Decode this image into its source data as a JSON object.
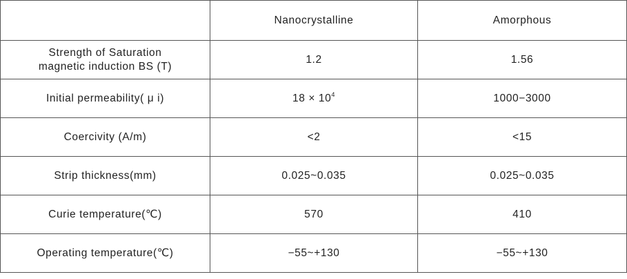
{
  "table": {
    "columns": [
      "Nanocrystalline",
      "Amorphous"
    ],
    "rows": [
      {
        "label": [
          "Strength of Saturation",
          "magnetic induction BS (T)"
        ],
        "values": [
          "1.2",
          "1.56"
        ]
      },
      {
        "label": [
          "Initial permeability( μ i)"
        ],
        "values": [
          {
            "base": "18 × 10",
            "exponent": "4"
          },
          "1000−3000"
        ]
      },
      {
        "label": [
          "Coercivity (A/m)"
        ],
        "values": [
          "<2",
          "<15"
        ]
      },
      {
        "label": [
          "Strip thickness(mm)"
        ],
        "values": [
          "0.025~0.035",
          "0.025~0.035"
        ]
      },
      {
        "label": [
          "Curie temperature(℃)"
        ],
        "values": [
          "570",
          "410"
        ]
      },
      {
        "label": [
          "Operating temperature(℃)"
        ],
        "values": [
          "−55~+130",
          "−55~+130"
        ]
      }
    ]
  }
}
